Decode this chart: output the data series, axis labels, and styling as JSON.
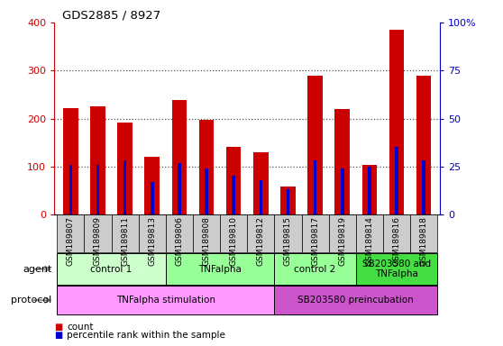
{
  "title": "GDS2885 / 8927",
  "samples": [
    "GSM189807",
    "GSM189809",
    "GSM189811",
    "GSM189813",
    "GSM189806",
    "GSM189808",
    "GSM189810",
    "GSM189812",
    "GSM189815",
    "GSM189817",
    "GSM189819",
    "GSM189814",
    "GSM189816",
    "GSM189818"
  ],
  "count_values": [
    222,
    225,
    192,
    120,
    238,
    198,
    140,
    130,
    58,
    290,
    220,
    103,
    385,
    290
  ],
  "percentile_values": [
    26,
    26,
    28,
    17,
    27,
    24,
    20,
    18,
    13,
    28,
    24,
    25,
    35,
    28
  ],
  "ylim_left": [
    0,
    400
  ],
  "ylim_right": [
    0,
    100
  ],
  "yticks_left": [
    0,
    100,
    200,
    300,
    400
  ],
  "yticks_right": [
    0,
    25,
    50,
    75,
    100
  ],
  "yticklabels_right": [
    "0",
    "25",
    "50",
    "75",
    "100%"
  ],
  "bar_color_count": "#cc0000",
  "bar_color_pct": "#0000cc",
  "bar_width": 0.55,
  "pct_bar_width": 0.12,
  "agent_groups": [
    {
      "label": "control 1",
      "start": 0,
      "end": 3,
      "color": "#ccffcc"
    },
    {
      "label": "TNFalpha",
      "start": 4,
      "end": 7,
      "color": "#99ff99"
    },
    {
      "label": "control 2",
      "start": 8,
      "end": 10,
      "color": "#99ff99"
    },
    {
      "label": "SB203580 and\nTNFalpha",
      "start": 11,
      "end": 13,
      "color": "#44dd44"
    }
  ],
  "protocol_groups": [
    {
      "label": "TNFalpha stimulation",
      "start": 0,
      "end": 7,
      "color": "#ff99ff"
    },
    {
      "label": "SB203580 preincubation",
      "start": 8,
      "end": 13,
      "color": "#cc55cc"
    }
  ],
  "legend_count_color": "#cc0000",
  "legend_pct_color": "#0000cc",
  "bg_color": "#ffffff",
  "xtick_bg_color": "#cccccc",
  "grid_dotted_color": "#555555"
}
